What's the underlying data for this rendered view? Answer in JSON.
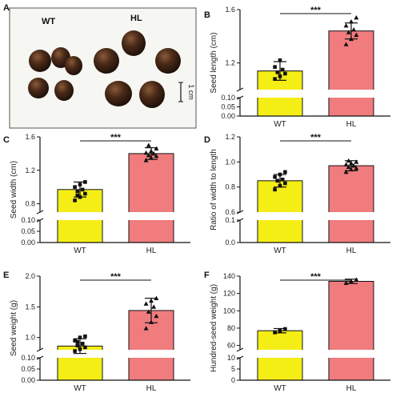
{
  "colors": {
    "wt": "#f5ee16",
    "hl": "#f07c7e",
    "line": "#111111",
    "photo_bg": "#f6f6f3",
    "seed": "#3a2114"
  },
  "photo": {
    "panel_label": "A",
    "wt_label": "WT",
    "hl_label": "HL",
    "scale_label": "1 cm"
  },
  "chart_data": [
    {
      "panel": "B",
      "type": "bar",
      "categories": [
        "WT",
        "HL"
      ],
      "ylabel": "Seed length (cm)",
      "upper_range": [
        1.0,
        1.6
      ],
      "upper_ticks": [
        "1.2",
        "1.6"
      ],
      "lower_range": [
        0.0,
        0.1
      ],
      "lower_ticks": [
        "0.00",
        "0.05",
        "0.10"
      ],
      "values": [
        1.14,
        1.44
      ],
      "errors": [
        0.07,
        0.06
      ],
      "points": [
        [
          1.08,
          1.1,
          1.12,
          1.13,
          1.15,
          1.17,
          1.22
        ],
        [
          1.34,
          1.38,
          1.41,
          1.43,
          1.45,
          1.48,
          1.51,
          1.54
        ]
      ],
      "significance": "***"
    },
    {
      "panel": "C",
      "type": "bar",
      "categories": [
        "WT",
        "HL"
      ],
      "ylabel": "Seed width (cm)",
      "upper_range": [
        0.7,
        1.6
      ],
      "upper_ticks": [
        "0.8",
        "1.2",
        "1.6"
      ],
      "lower_range": [
        0.0,
        0.1
      ],
      "lower_ticks": [
        "0.00",
        "0.05",
        "0.10"
      ],
      "values": [
        0.97,
        1.4
      ],
      "errors": [
        0.09,
        0.07
      ],
      "points": [
        [
          0.84,
          0.88,
          0.92,
          0.95,
          0.97,
          1.0,
          1.03,
          1.06,
          0.9
        ],
        [
          1.32,
          1.35,
          1.37,
          1.38,
          1.4,
          1.41,
          1.43,
          1.46,
          1.5
        ]
      ],
      "significance": "***"
    },
    {
      "panel": "D",
      "type": "bar",
      "categories": [
        "WT",
        "HL"
      ],
      "ylabel": "Ratio of width to length",
      "upper_range": [
        0.6,
        1.2
      ],
      "upper_ticks": [
        "0.6",
        "0.8",
        "1.0",
        "1.2"
      ],
      "lower_range": [
        0.0,
        0.1
      ],
      "lower_ticks": [
        "0.0",
        "0.1"
      ],
      "values": [
        0.85,
        0.97
      ],
      "errors": [
        0.05,
        0.04
      ],
      "points": [
        [
          0.78,
          0.81,
          0.83,
          0.85,
          0.86,
          0.88,
          0.9,
          0.92
        ],
        [
          0.92,
          0.94,
          0.95,
          0.96,
          0.97,
          0.98,
          0.99,
          1.0,
          1.01
        ]
      ],
      "significance": "***"
    },
    {
      "panel": "E",
      "type": "bar",
      "categories": [
        "WT",
        "HL"
      ],
      "ylabel": "Seed weight (g)",
      "upper_range": [
        0.8,
        2.0
      ],
      "upper_ticks": [
        "1.0",
        "1.5",
        "2.0"
      ],
      "lower_range": [
        0.0,
        0.1
      ],
      "lower_ticks": [
        "0.00",
        "0.05",
        "0.10"
      ],
      "values": [
        0.86,
        1.44
      ],
      "errors": [
        0.12,
        0.2
      ],
      "points": [
        [
          0.78,
          0.81,
          0.84,
          0.87,
          0.9,
          0.95,
          1.0,
          1.02,
          0.93
        ],
        [
          1.15,
          1.25,
          1.35,
          1.42,
          1.5,
          1.55,
          1.6,
          1.64
        ]
      ],
      "significance": "***"
    },
    {
      "panel": "F",
      "type": "bar",
      "categories": [
        "WT",
        "HL"
      ],
      "ylabel": "Hundred-seed weight (g)",
      "upper_range": [
        55,
        140
      ],
      "upper_ticks": [
        "60",
        "80",
        "100",
        "120",
        "140"
      ],
      "lower_range": [
        0,
        10
      ],
      "lower_ticks": [
        "0",
        "5",
        "10"
      ],
      "values": [
        77,
        134
      ],
      "errors": [
        2.5,
        2.5
      ],
      "points": [
        [
          75,
          77,
          79
        ],
        [
          132,
          134,
          136
        ]
      ],
      "significance": "***"
    }
  ]
}
